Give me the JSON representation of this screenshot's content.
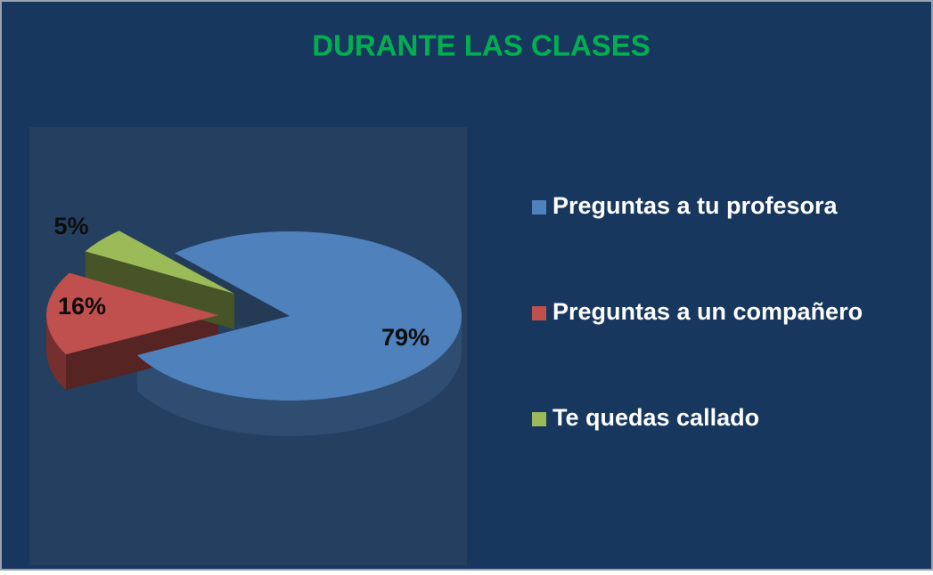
{
  "chart_data": {
    "type": "pie",
    "title": "DURANTE LAS CLASES",
    "categories": [
      "Preguntas a tu profesora",
      "Preguntas a un compañero",
      "Te quedas callado"
    ],
    "values": [
      79,
      16,
      5
    ],
    "value_labels": [
      "79%",
      "16%",
      "5%"
    ],
    "colors": [
      "#4f81bd",
      "#c0504d",
      "#9bbb59"
    ],
    "legend": "right"
  }
}
